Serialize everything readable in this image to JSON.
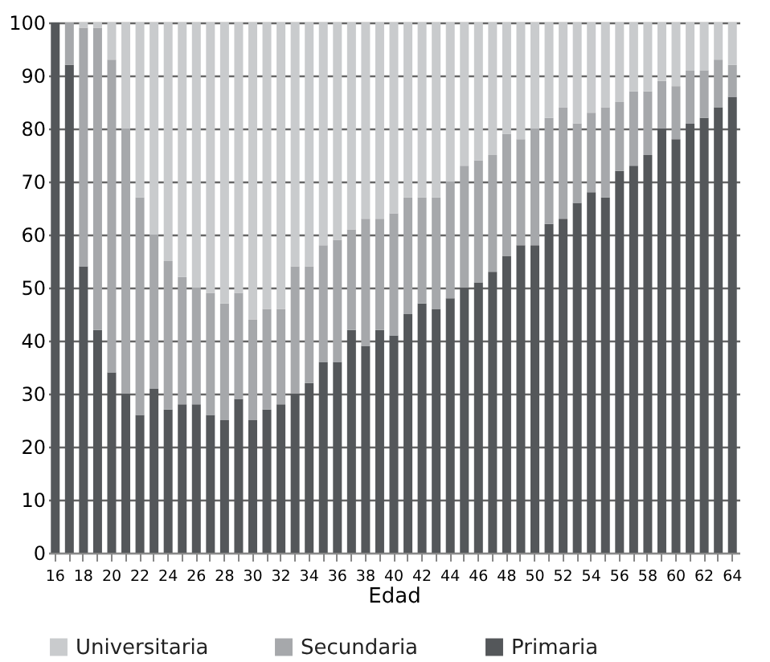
{
  "chart_data": {
    "type": "bar",
    "stacked": true,
    "xlabel": "Edad",
    "categories": [
      "16",
      null,
      "18",
      null,
      "20",
      null,
      "22",
      null,
      "24",
      null,
      "26",
      null,
      "28",
      null,
      "30",
      null,
      "32",
      null,
      "34",
      null,
      "36",
      null,
      "38",
      null,
      "40",
      null,
      "42",
      null,
      "44",
      null,
      "46",
      null,
      "48",
      null,
      "50",
      null,
      "52",
      null,
      "54",
      null,
      "56",
      null,
      "58",
      null,
      "60",
      null,
      "62",
      null,
      "64"
    ],
    "series": [
      {
        "name": "Primaria",
        "color": "#54575a",
        "values": [
          100,
          92,
          54,
          42,
          34,
          30,
          26,
          31,
          27,
          28,
          28,
          26,
          25,
          29,
          25,
          27,
          28,
          30,
          32,
          36,
          36,
          42,
          39,
          42,
          41,
          45,
          47,
          46,
          48,
          50,
          51,
          53,
          56,
          58,
          58,
          62,
          63,
          66,
          68,
          67,
          72,
          73,
          75,
          80,
          78,
          81,
          82,
          84,
          86
        ]
      },
      {
        "name": "Secundaria",
        "color": "#a6a8ab",
        "values": [
          0,
          8,
          45,
          57,
          59,
          50,
          41,
          29,
          28,
          24,
          22,
          23,
          22,
          20,
          19,
          19,
          18,
          24,
          22,
          22,
          23,
          19,
          24,
          21,
          23,
          22,
          20,
          21,
          22,
          23,
          23,
          22,
          23,
          20,
          22,
          20,
          21,
          15,
          15,
          17,
          13,
          14,
          12,
          9,
          10,
          10,
          9,
          9,
          6
        ]
      },
      {
        "name": "Universitaria",
        "color": "#c9cbcd",
        "values": [
          0,
          0,
          1,
          1,
          7,
          20,
          33,
          40,
          45,
          48,
          50,
          51,
          53,
          51,
          56,
          54,
          54,
          46,
          46,
          42,
          41,
          39,
          37,
          37,
          36,
          33,
          33,
          33,
          30,
          27,
          26,
          25,
          21,
          22,
          20,
          18,
          16,
          19,
          17,
          16,
          15,
          13,
          13,
          11,
          12,
          9,
          9,
          7,
          8
        ]
      }
    ],
    "ylim": [
      0,
      100
    ],
    "yticks": [
      0,
      10,
      20,
      30,
      40,
      50,
      60,
      70,
      80,
      90,
      100
    ],
    "grid": "y",
    "legend": "bottom"
  }
}
